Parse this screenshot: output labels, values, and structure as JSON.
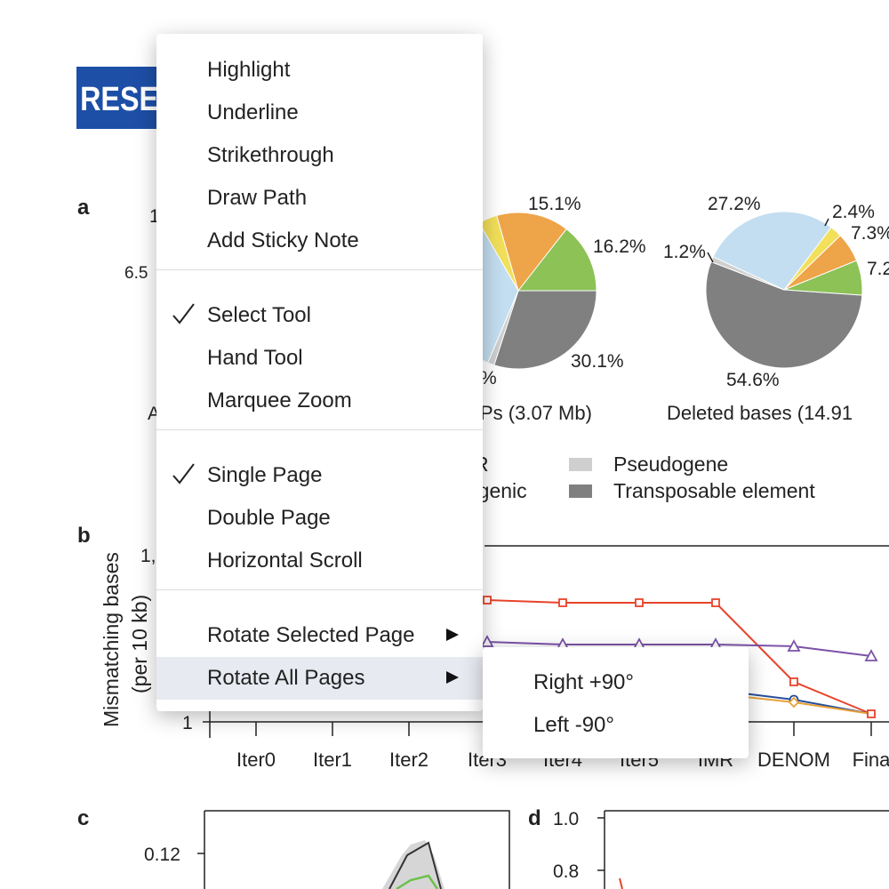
{
  "document": {
    "banner": "RESE",
    "panel_labels": [
      "a",
      "b",
      "c",
      "d"
    ],
    "pie_fragments": [
      "1",
      "6.5",
      "%"
    ],
    "middle_pie_labels": [
      "15.1%",
      "16.2%",
      "30.1%"
    ],
    "middle_pie_caption": "Ps (3.07 Mb)",
    "left_pie_caption": "A",
    "right_pie_labels": [
      "27.2%",
      "2.4%",
      "7.3%",
      "1.2%",
      "7.2",
      "54.6%"
    ],
    "right_pie_caption": "Deleted bases (14.91",
    "legend": [
      "R",
      "rgenic",
      "Pseudogene",
      "Transposable element"
    ],
    "chart_b": {
      "y_label": [
        "Mismatching bases",
        "(per 10 kb)"
      ],
      "y_ticks": [
        "1,",
        "1"
      ],
      "x_ticks": [
        "Iter0",
        "Iter1",
        "Iter2",
        "Iter3",
        "Iter4",
        "Iter5",
        "IMR",
        "DENOM",
        "Fina"
      ]
    },
    "chart_c": {
      "y_ticks": [
        "0.12"
      ]
    },
    "chart_d": {
      "y_ticks": [
        "1.0",
        "0.8"
      ]
    }
  },
  "menu": {
    "groups": [
      [
        {
          "label": "Highlight"
        },
        {
          "label": "Underline"
        },
        {
          "label": "Strikethrough"
        },
        {
          "label": "Draw Path"
        },
        {
          "label": "Add Sticky Note"
        }
      ],
      [
        {
          "label": "Select Tool",
          "checked": true
        },
        {
          "label": "Hand Tool"
        },
        {
          "label": "Marquee Zoom"
        }
      ],
      [
        {
          "label": "Single Page",
          "checked": true
        },
        {
          "label": "Double Page"
        },
        {
          "label": "Horizontal Scroll"
        }
      ],
      [
        {
          "label": "Rotate Selected Page",
          "submenu": true
        },
        {
          "label": "Rotate All Pages",
          "submenu": true,
          "highlighted": true
        }
      ]
    ],
    "submenu": [
      "Right +90°",
      "Left -90°"
    ]
  }
}
